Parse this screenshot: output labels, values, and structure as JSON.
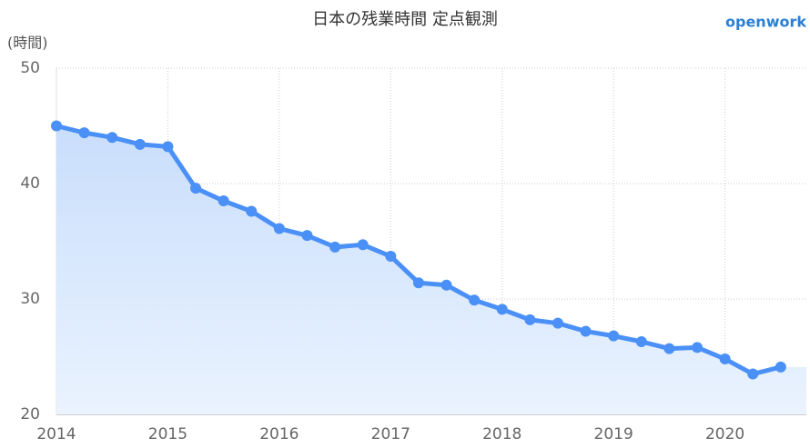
{
  "chart_data": {
    "type": "line",
    "title": "日本の残業時間 定点観測",
    "brand": "openwork",
    "y_label": "(時間)",
    "x": [
      2014,
      2014.25,
      2014.5,
      2014.75,
      2015,
      2015.25,
      2015.5,
      2015.75,
      2016,
      2016.25,
      2016.5,
      2016.75,
      2017,
      2017.25,
      2017.5,
      2017.75,
      2018,
      2018.25,
      2018.5,
      2018.75,
      2019,
      2019.25,
      2019.5,
      2019.75,
      2020,
      2020.25,
      2020.5
    ],
    "series": [
      {
        "color": "#4a90f7",
        "values": [
          45.0,
          44.4,
          44.0,
          43.4,
          43.2,
          39.6,
          38.5,
          37.6,
          36.1,
          35.5,
          34.5,
          34.7,
          33.7,
          31.4,
          31.2,
          29.9,
          29.1,
          28.2,
          27.9,
          27.2,
          26.8,
          26.3,
          25.7,
          25.8,
          24.8,
          23.5,
          24.1
        ]
      }
    ],
    "xlim": [
      2014,
      2020.73
    ],
    "xticks": [
      2014,
      2015,
      2016,
      2017,
      2018,
      2019,
      2020
    ],
    "ylim": [
      20,
      50
    ],
    "yticks": [
      20,
      30,
      40,
      50
    ],
    "grid": true
  }
}
